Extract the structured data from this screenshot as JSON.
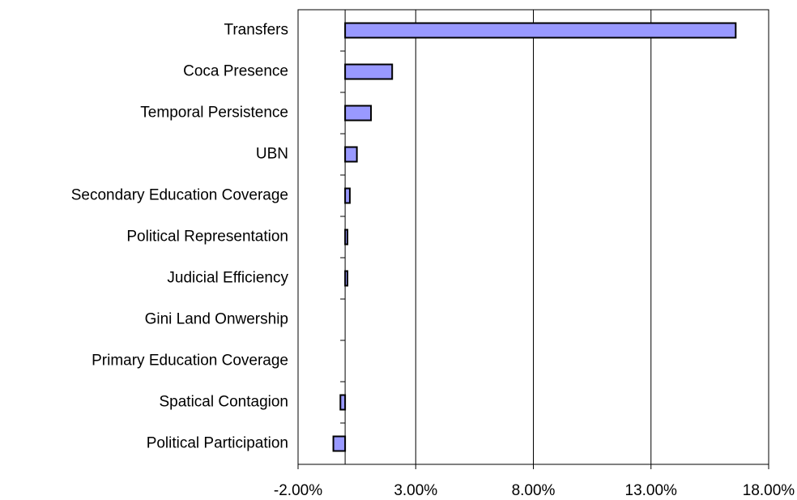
{
  "chart_data": {
    "type": "bar",
    "orientation": "horizontal",
    "categories": [
      "Transfers",
      "Coca Presence",
      "Temporal Persistence",
      "UBN",
      "Secondary Education Coverage",
      "Political Representation",
      "Judicial Efficiency",
      "Gini Land Onwership",
      "Primary Education Coverage",
      "Spatical Contagion",
      "Political Participation"
    ],
    "values": [
      16.6,
      2.0,
      1.1,
      0.5,
      0.2,
      0.1,
      0.1,
      0,
      0,
      -0.2,
      -0.5
    ],
    "color": "#9999ff",
    "xlim": [
      -2,
      18
    ],
    "xticks": [
      {
        "value": -2,
        "label": "-2.00%"
      },
      {
        "value": 3,
        "label": "3.00%"
      },
      {
        "value": 8,
        "label": "8.00%"
      },
      {
        "value": 13,
        "label": "13.00%"
      },
      {
        "value": 18,
        "label": "18.00%"
      }
    ],
    "grid": true
  }
}
